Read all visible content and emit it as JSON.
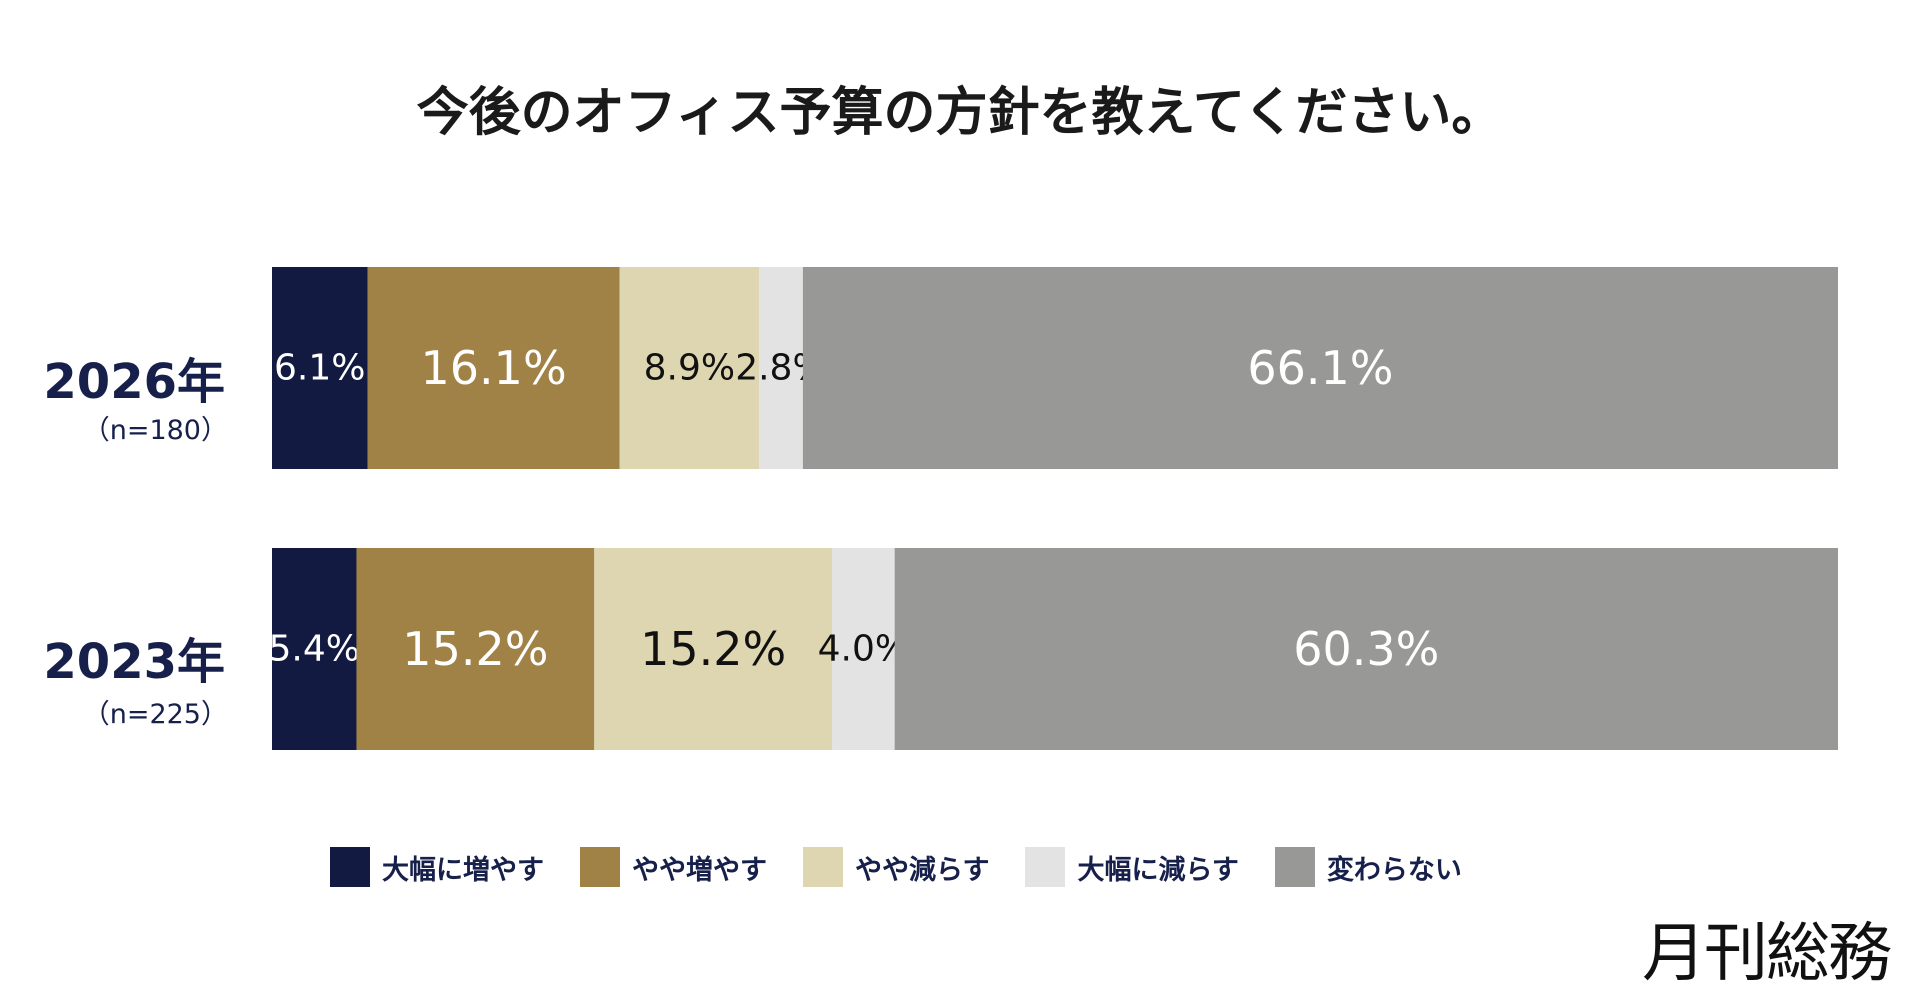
{
  "chart_data": {
    "type": "bar",
    "orientation": "horizontal",
    "stacked": true,
    "percent": true,
    "title": "今後のオフィス予算の方針を教えてください。",
    "categories": [
      {
        "label": "2026年",
        "sub": "（n=180）"
      },
      {
        "label": "2023年",
        "sub": "（n=225）"
      }
    ],
    "series": [
      {
        "name": "大幅に増やす",
        "color": "#131a42",
        "text_color": "#ffffff",
        "values": [
          6.1,
          5.4
        ],
        "labels": [
          "6.1%",
          "5.4%"
        ],
        "label_size": [
          "small",
          "small"
        ]
      },
      {
        "name": "やや増やす",
        "color": "#a08146",
        "text_color": "#ffffff",
        "values": [
          16.1,
          15.2
        ],
        "labels": [
          "16.1%",
          "15.2%"
        ],
        "label_size": [
          "large",
          "large"
        ]
      },
      {
        "name": "やや減らす",
        "color": "#ded6b1",
        "text_color": "#111111",
        "values": [
          8.9,
          15.2
        ],
        "labels": [
          "8.9%",
          "15.2%"
        ],
        "label_size": [
          "small",
          "large"
        ]
      },
      {
        "name": "大幅に減らす",
        "color": "#e3e3e3",
        "text_color": "#111111",
        "values": [
          2.8,
          4.0
        ],
        "labels": [
          "2.8%",
          "4.0%"
        ],
        "label_size": [
          "small",
          "small"
        ]
      },
      {
        "name": "変わらない",
        "color": "#989996",
        "text_color": "#ffffff",
        "values": [
          66.1,
          60.3
        ],
        "labels": [
          "66.1%",
          "60.3%"
        ],
        "label_size": [
          "large",
          "large"
        ]
      }
    ],
    "legend_position": "bottom",
    "grid": false
  },
  "brand": {
    "logo_text": "月刊総務"
  }
}
